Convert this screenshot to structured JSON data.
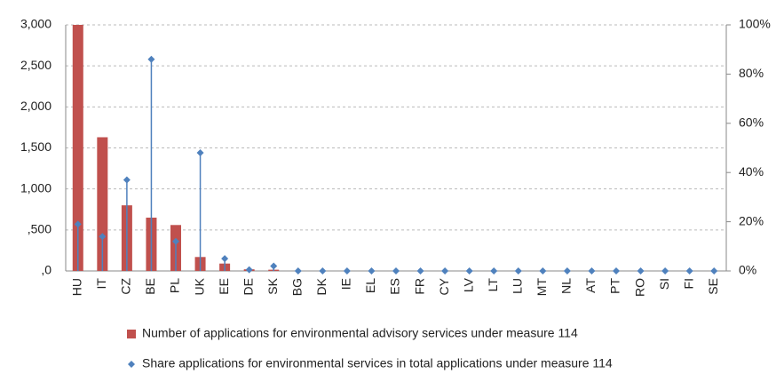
{
  "chart_data": {
    "type": "bar",
    "categories": [
      "HU",
      "IT",
      "CZ",
      "BE",
      "PL",
      "UK",
      "EE",
      "DE",
      "SK",
      "BG",
      "DK",
      "IE",
      "EL",
      "ES",
      "FR",
      "CY",
      "LV",
      "LT",
      "LU",
      "MT",
      "NL",
      "AT",
      "PT",
      "RO",
      "SI",
      "FI",
      "SE"
    ],
    "series": [
      {
        "name": "Number of applications for environmental advisory services under measure 114",
        "color": "#c0504d",
        "values": [
          3000,
          1630,
          800,
          650,
          560,
          170,
          90,
          20,
          15,
          0,
          0,
          0,
          0,
          0,
          0,
          0,
          0,
          0,
          0,
          0,
          0,
          0,
          0,
          0,
          0,
          0,
          0
        ]
      },
      {
        "name": "Share applications for environmental services in total applications under measure 114",
        "color": "#4f81bd",
        "axis": "y2",
        "values": [
          19,
          14,
          37,
          86,
          12,
          48,
          5,
          0.5,
          2,
          0,
          0,
          0,
          0,
          0,
          0,
          0,
          0,
          0,
          0,
          0,
          0,
          0,
          0,
          0,
          0,
          0,
          0
        ]
      }
    ],
    "ylim": [
      0,
      3000
    ],
    "yticks": [
      {
        "value": 0,
        "label": ",0"
      },
      {
        "value": 500,
        "label": ",500"
      },
      {
        "value": 1000,
        "label": "1,000"
      },
      {
        "value": 1500,
        "label": "1,500"
      },
      {
        "value": 2000,
        "label": "2,000"
      },
      {
        "value": 2500,
        "label": "2,500"
      },
      {
        "value": 3000,
        "label": "3,000"
      }
    ],
    "y2lim": [
      0,
      100
    ],
    "y2ticks": [
      {
        "value": 0,
        "label": "0%"
      },
      {
        "value": 20,
        "label": "20%"
      },
      {
        "value": 40,
        "label": "40%"
      },
      {
        "value": 60,
        "label": "60%"
      },
      {
        "value": 80,
        "label": "80%"
      },
      {
        "value": 100,
        "label": "100%"
      }
    ],
    "grid": true
  }
}
